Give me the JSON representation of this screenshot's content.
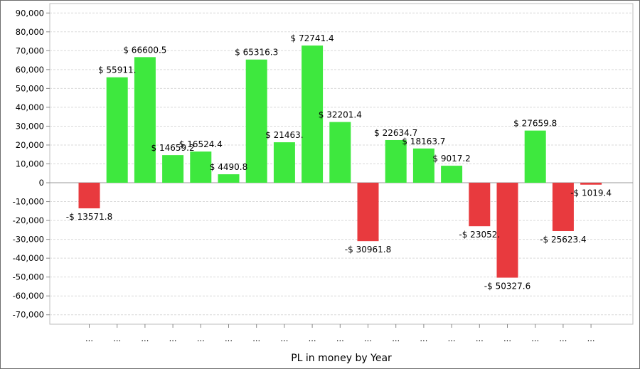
{
  "chart_data": {
    "type": "bar",
    "title": "",
    "xlabel": "PL in money by Year",
    "ylabel": "",
    "ylim": [
      -75000,
      95000
    ],
    "yticks": [
      90000,
      80000,
      70000,
      60000,
      50000,
      40000,
      30000,
      20000,
      10000,
      0,
      -10000,
      -20000,
      -30000,
      -40000,
      -50000,
      -60000,
      -70000
    ],
    "ytick_labels": [
      "90,000",
      "80,000",
      "70,000",
      "60,000",
      "50,000",
      "40,000",
      "30,000",
      "20,000",
      "10,000",
      "0",
      "-10,000",
      "-20,000",
      "-30,000",
      "-40,000",
      "-50,000",
      "-60,000",
      "-70,000"
    ],
    "grid": true,
    "legend": "none",
    "positive_color": "#3ee83e",
    "negative_color": "#e83a3e",
    "categories": [
      "...",
      "...",
      "...",
      "...",
      "...",
      "...",
      "...",
      "...",
      "...",
      "...",
      "...",
      "...",
      "...",
      "...",
      "...",
      "...",
      "...",
      "...",
      "..."
    ],
    "values": [
      -13571.8,
      55911,
      66600.5,
      14659.2,
      16524.4,
      4490.8,
      65316.3,
      21463,
      72741.4,
      32201.4,
      -30961.8,
      22634.7,
      18163.7,
      9017.2,
      -23052,
      -50327.6,
      27659.8,
      -25623.4,
      -1019.4
    ],
    "data_labels": [
      "-$ 13571.8",
      "$ 55911.",
      "$ 66600.5",
      "$ 14659.2",
      "$ 16524.4",
      "$ 4490.8",
      "$ 65316.3",
      "$ 21463.",
      "$ 72741.4",
      "$ 32201.4",
      "-$ 30961.8",
      "$ 22634.7",
      "$ 18163.7",
      "$ 9017.2",
      "-$ 23052.",
      "-$ 50327.6",
      "$ 27659.8",
      "-$ 25623.4",
      "-$ 1019.4"
    ]
  }
}
